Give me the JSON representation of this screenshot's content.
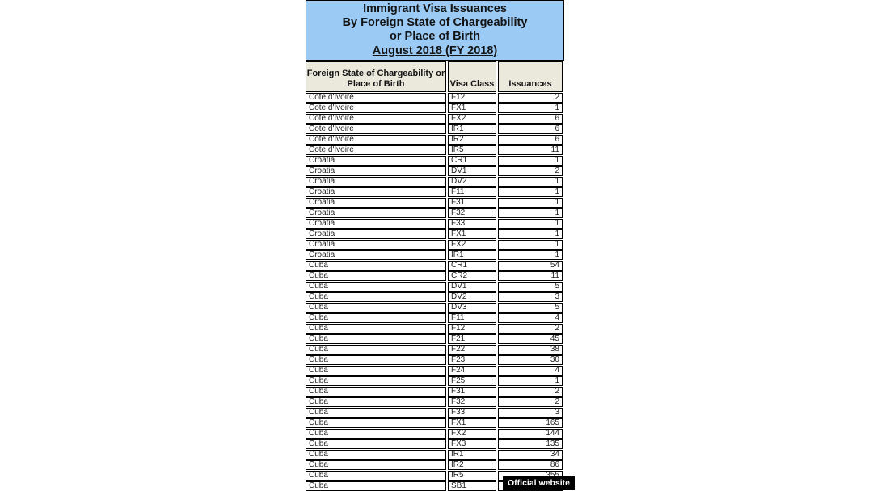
{
  "page": {
    "background_color": "#ffffff"
  },
  "table": {
    "title": {
      "lines": [
        "Immigrant Visa Issuances",
        "By Foreign State of Chargeability",
        "or Place of Birth",
        "August 2018 (FY 2018)"
      ],
      "background_color": "#9BCAF5"
    },
    "header": {
      "col1_lines": [
        "Foreign State of Chargeability or",
        "Place of Birth"
      ],
      "col2": "Visa Class",
      "col3": "Issuances",
      "background_color": "#EBE8DC"
    },
    "rows": [
      {
        "country": "Cote d'Ivoire",
        "visa_class": "F12",
        "issuances": 2
      },
      {
        "country": "Cote d'Ivoire",
        "visa_class": "FX1",
        "issuances": 1
      },
      {
        "country": "Cote d'Ivoire",
        "visa_class": "FX2",
        "issuances": 6
      },
      {
        "country": "Cote d'Ivoire",
        "visa_class": "IR1",
        "issuances": 6
      },
      {
        "country": "Cote d'Ivoire",
        "visa_class": "IR2",
        "issuances": 6
      },
      {
        "country": "Cote d'Ivoire",
        "visa_class": "IR5",
        "issuances": 11
      },
      {
        "country": "Croatia",
        "visa_class": "CR1",
        "issuances": 1
      },
      {
        "country": "Croatia",
        "visa_class": "DV1",
        "issuances": 2
      },
      {
        "country": "Croatia",
        "visa_class": "DV2",
        "issuances": 1
      },
      {
        "country": "Croatia",
        "visa_class": "F11",
        "issuances": 1
      },
      {
        "country": "Croatia",
        "visa_class": "F31",
        "issuances": 1
      },
      {
        "country": "Croatia",
        "visa_class": "F32",
        "issuances": 1
      },
      {
        "country": "Croatia",
        "visa_class": "F33",
        "issuances": 1
      },
      {
        "country": "Croatia",
        "visa_class": "FX1",
        "issuances": 1
      },
      {
        "country": "Croatia",
        "visa_class": "FX2",
        "issuances": 1
      },
      {
        "country": "Croatia",
        "visa_class": "IR1",
        "issuances": 1
      },
      {
        "country": "Cuba",
        "visa_class": "CR1",
        "issuances": 54
      },
      {
        "country": "Cuba",
        "visa_class": "CR2",
        "issuances": 11
      },
      {
        "country": "Cuba",
        "visa_class": "DV1",
        "issuances": 5
      },
      {
        "country": "Cuba",
        "visa_class": "DV2",
        "issuances": 3
      },
      {
        "country": "Cuba",
        "visa_class": "DV3",
        "issuances": 5
      },
      {
        "country": "Cuba",
        "visa_class": "F11",
        "issuances": 4
      },
      {
        "country": "Cuba",
        "visa_class": "F12",
        "issuances": 2
      },
      {
        "country": "Cuba",
        "visa_class": "F21",
        "issuances": 45
      },
      {
        "country": "Cuba",
        "visa_class": "F22",
        "issuances": 38
      },
      {
        "country": "Cuba",
        "visa_class": "F23",
        "issuances": 30
      },
      {
        "country": "Cuba",
        "visa_class": "F24",
        "issuances": 4
      },
      {
        "country": "Cuba",
        "visa_class": "F25",
        "issuances": 1
      },
      {
        "country": "Cuba",
        "visa_class": "F31",
        "issuances": 2
      },
      {
        "country": "Cuba",
        "visa_class": "F32",
        "issuances": 2
      },
      {
        "country": "Cuba",
        "visa_class": "F33",
        "issuances": 3
      },
      {
        "country": "Cuba",
        "visa_class": "FX1",
        "issuances": 165
      },
      {
        "country": "Cuba",
        "visa_class": "FX2",
        "issuances": 144
      },
      {
        "country": "Cuba",
        "visa_class": "FX3",
        "issuances": 135
      },
      {
        "country": "Cuba",
        "visa_class": "IR1",
        "issuances": 34
      },
      {
        "country": "Cuba",
        "visa_class": "IR2",
        "issuances": 86
      },
      {
        "country": "Cuba",
        "visa_class": "IR5",
        "issuances": 355
      },
      {
        "country": "Cuba",
        "visa_class": "SB1",
        "issuances": ""
      }
    ]
  },
  "watermark": {
    "label": "Official website",
    "background_color": "#000000",
    "text_color": "#ffffff"
  }
}
